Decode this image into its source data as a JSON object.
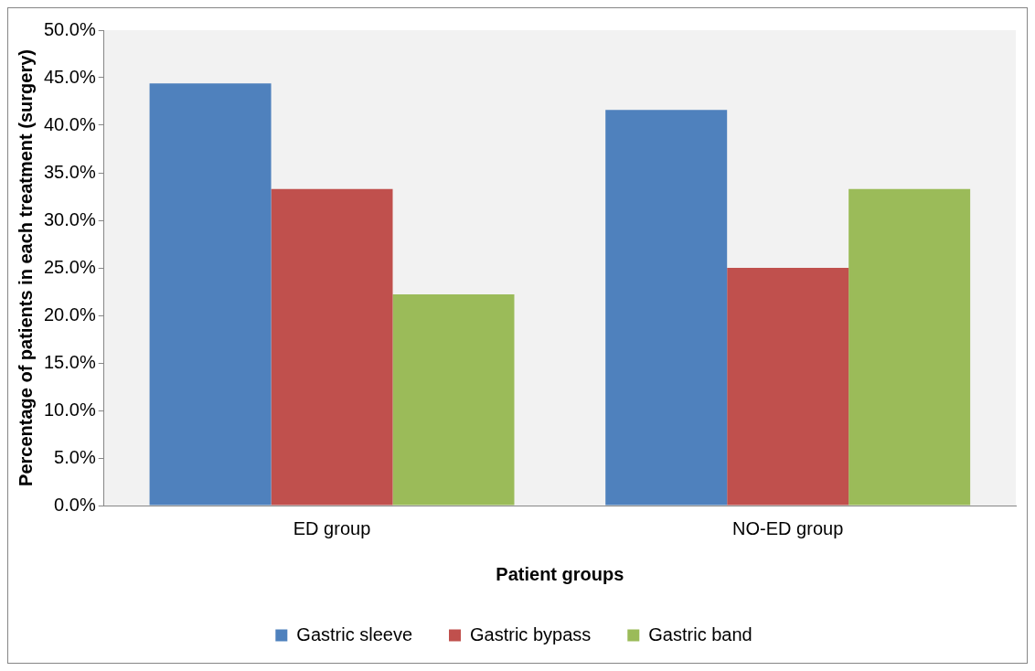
{
  "chart_data": {
    "type": "bar",
    "xlabel": "Patient groups",
    "ylabel": "Percentage of patients in each treatment (surgery)",
    "categories": [
      "ED group",
      "NO-ED group"
    ],
    "series": [
      {
        "name": "Gastric sleeve",
        "color": "#4f81bd",
        "values": [
          44.4,
          41.6
        ]
      },
      {
        "name": "Gastric bypass",
        "color": "#c0504d",
        "values": [
          33.3,
          25.0
        ]
      },
      {
        "name": "Gastric band",
        "color": "#9bbb59",
        "values": [
          22.2,
          33.3
        ]
      }
    ],
    "ylim": [
      0,
      50
    ],
    "yticks": [
      {
        "value": 0,
        "label": "0.0%"
      },
      {
        "value": 5,
        "label": "5.0%"
      },
      {
        "value": 10,
        "label": "10.0%"
      },
      {
        "value": 15,
        "label": "15.0%"
      },
      {
        "value": 20,
        "label": "20.0%"
      },
      {
        "value": 25,
        "label": "25.0%"
      },
      {
        "value": 30,
        "label": "30.0%"
      },
      {
        "value": 35,
        "label": "35.0%"
      },
      {
        "value": 40,
        "label": "40.0%"
      },
      {
        "value": 45,
        "label": "45.0%"
      },
      {
        "value": 50,
        "label": "50.0%"
      }
    ],
    "grid": false,
    "legend": "bottom"
  }
}
